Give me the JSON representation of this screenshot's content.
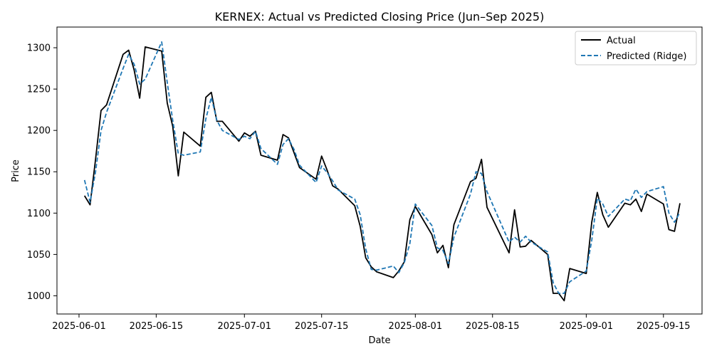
{
  "chart_data": {
    "type": "line",
    "title": "KERNEX: Actual vs Predicted Closing Price (Jun–Sep 2025)",
    "xlabel": "Date",
    "ylabel": "Price",
    "xlim": [
      "2025-05-28",
      "2025-09-22"
    ],
    "ylim": [
      978,
      1325
    ],
    "x_ticks": [
      "2025-06-01",
      "2025-06-15",
      "2025-07-01",
      "2025-07-15",
      "2025-08-01",
      "2025-08-15",
      "2025-09-01",
      "2025-09-15"
    ],
    "y_ticks": [
      1000,
      1050,
      1100,
      1150,
      1200,
      1250,
      1300
    ],
    "grid": false,
    "legend_position": "top-right",
    "series": [
      {
        "name": "Actual",
        "color": "#000000",
        "style": "solid",
        "x": [
          "2025-06-02",
          "2025-06-03",
          "2025-06-04",
          "2025-06-05",
          "2025-06-06",
          "2025-06-09",
          "2025-06-10",
          "2025-06-11",
          "2025-06-12",
          "2025-06-13",
          "2025-06-16",
          "2025-06-17",
          "2025-06-18",
          "2025-06-19",
          "2025-06-20",
          "2025-06-23",
          "2025-06-24",
          "2025-06-25",
          "2025-06-26",
          "2025-06-27",
          "2025-06-30",
          "2025-07-01",
          "2025-07-02",
          "2025-07-03",
          "2025-07-04",
          "2025-07-07",
          "2025-07-08",
          "2025-07-09",
          "2025-07-10",
          "2025-07-11",
          "2025-07-14",
          "2025-07-15",
          "2025-07-16",
          "2025-07-17",
          "2025-07-18",
          "2025-07-21",
          "2025-07-22",
          "2025-07-23",
          "2025-07-24",
          "2025-07-25",
          "2025-07-28",
          "2025-07-29",
          "2025-07-30",
          "2025-07-31",
          "2025-08-01",
          "2025-08-04",
          "2025-08-05",
          "2025-08-06",
          "2025-08-07",
          "2025-08-08",
          "2025-08-11",
          "2025-08-12",
          "2025-08-13",
          "2025-08-14",
          "2025-08-18",
          "2025-08-19",
          "2025-08-20",
          "2025-08-21",
          "2025-08-22",
          "2025-08-25",
          "2025-08-26",
          "2025-08-27",
          "2025-08-28",
          "2025-08-29",
          "2025-09-01",
          "2025-09-02",
          "2025-09-03",
          "2025-09-04",
          "2025-09-05",
          "2025-09-08",
          "2025-09-09",
          "2025-09-10",
          "2025-09-11",
          "2025-09-12",
          "2025-09-15",
          "2025-09-16",
          "2025-09-17",
          "2025-09-18"
        ],
        "values": [
          1121,
          1110,
          1165,
          1224,
          1231,
          1292,
          1297,
          1273,
          1239,
          1301,
          1296,
          1233,
          1205,
          1145,
          1198,
          1181,
          1240,
          1246,
          1211,
          1211,
          1187,
          1197,
          1193,
          1199,
          1170,
          1164,
          1195,
          1191,
          1173,
          1155,
          1141,
          1169,
          1152,
          1133,
          1129,
          1109,
          1084,
          1046,
          1035,
          1029,
          1022,
          1030,
          1041,
          1092,
          1108,
          1074,
          1052,
          1061,
          1034,
          1086,
          1138,
          1142,
          1165,
          1107,
          1052,
          1104,
          1059,
          1060,
          1067,
          1050,
          1003,
          1003,
          994,
          1033,
          1027,
          1089,
          1125,
          1098,
          1083,
          1112,
          1110,
          1117,
          1102,
          1123,
          1111,
          1080,
          1078,
          1112
        ]
      },
      {
        "name": "Predicted (Ridge)",
        "color": "#1f77b4",
        "style": "dashed",
        "x": [
          "2025-06-02",
          "2025-06-03",
          "2025-06-04",
          "2025-06-05",
          "2025-06-06",
          "2025-06-09",
          "2025-06-10",
          "2025-06-11",
          "2025-06-12",
          "2025-06-13",
          "2025-06-16",
          "2025-06-17",
          "2025-06-18",
          "2025-06-19",
          "2025-06-20",
          "2025-06-23",
          "2025-06-24",
          "2025-06-25",
          "2025-06-26",
          "2025-06-27",
          "2025-06-30",
          "2025-07-01",
          "2025-07-02",
          "2025-07-03",
          "2025-07-04",
          "2025-07-07",
          "2025-07-08",
          "2025-07-09",
          "2025-07-10",
          "2025-07-11",
          "2025-07-14",
          "2025-07-15",
          "2025-07-16",
          "2025-07-17",
          "2025-07-18",
          "2025-07-21",
          "2025-07-22",
          "2025-07-23",
          "2025-07-24",
          "2025-07-25",
          "2025-07-28",
          "2025-07-29",
          "2025-07-30",
          "2025-07-31",
          "2025-08-01",
          "2025-08-04",
          "2025-08-05",
          "2025-08-06",
          "2025-08-07",
          "2025-08-08",
          "2025-08-11",
          "2025-08-12",
          "2025-08-13",
          "2025-08-14",
          "2025-08-18",
          "2025-08-19",
          "2025-08-20",
          "2025-08-21",
          "2025-08-22",
          "2025-08-25",
          "2025-08-26",
          "2025-08-27",
          "2025-08-28",
          "2025-08-29",
          "2025-09-01",
          "2025-09-02",
          "2025-09-03",
          "2025-09-04",
          "2025-09-05",
          "2025-09-08",
          "2025-09-09",
          "2025-09-10",
          "2025-09-11",
          "2025-09-12",
          "2025-09-15",
          "2025-09-16",
          "2025-09-17",
          "2025-09-18"
        ],
        "values": [
          1140,
          1113,
          1150,
          1200,
          1222,
          1275,
          1292,
          1280,
          1256,
          1262,
          1307,
          1258,
          1212,
          1172,
          1170,
          1174,
          1214,
          1240,
          1212,
          1200,
          1189,
          1193,
          1190,
          1199,
          1178,
          1159,
          1183,
          1190,
          1177,
          1158,
          1137,
          1157,
          1149,
          1139,
          1128,
          1117,
          1098,
          1057,
          1032,
          1031,
          1036,
          1028,
          1040,
          1063,
          1111,
          1085,
          1058,
          1055,
          1039,
          1071,
          1123,
          1150,
          1148,
          1126,
          1065,
          1071,
          1065,
          1072,
          1065,
          1053,
          1016,
          1003,
          1003,
          1017,
          1030,
          1067,
          1118,
          1111,
          1096,
          1117,
          1115,
          1129,
          1119,
          1126,
          1132,
          1100,
          1089,
          1101
        ]
      }
    ]
  }
}
